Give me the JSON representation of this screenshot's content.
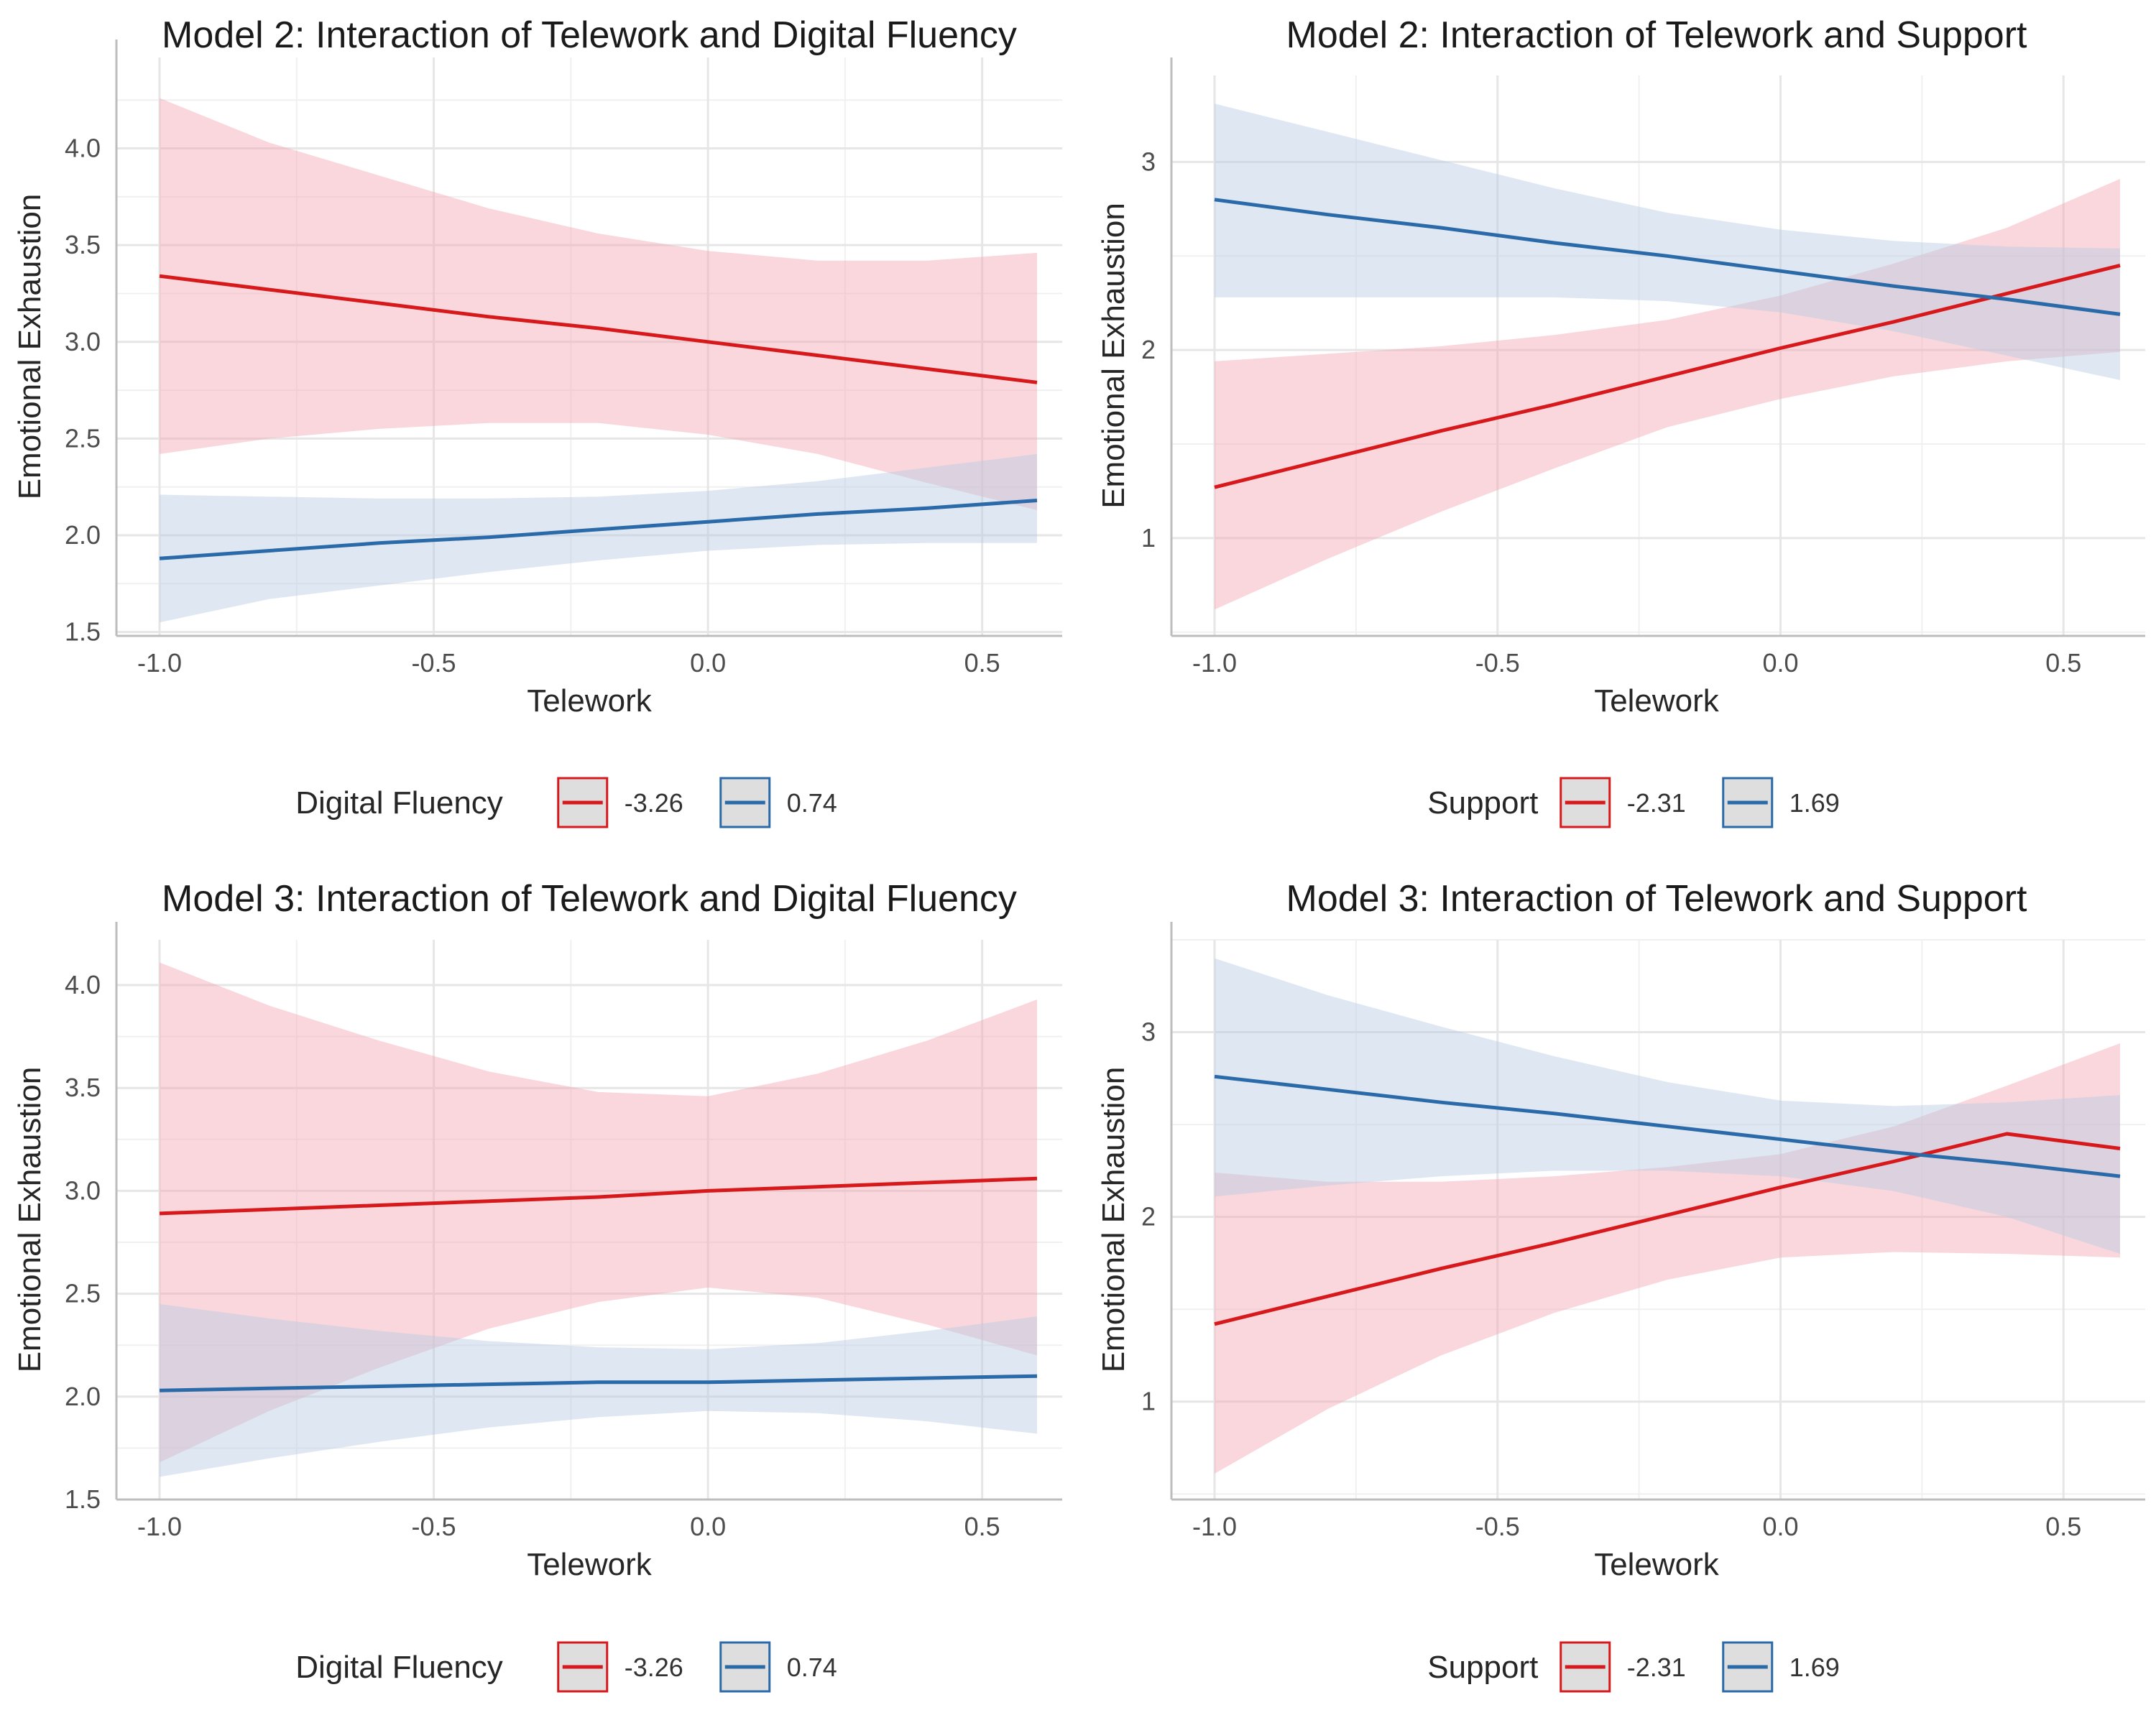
{
  "colors": {
    "low": "#d7191c",
    "high": "#2b6aa8",
    "low_band": "#f2a7b3",
    "high_band": "#b9cbe3",
    "grid_major": "#e6e6e6",
    "grid_minor": "#f0f0f0",
    "axis": "#bdbdbd",
    "tick_text": "#4d4d4d",
    "title_text": "#1a1a1a"
  },
  "chart_data": [
    {
      "type": "line",
      "title": "Model 2: Interaction of Telework and Digital Fluency",
      "xlabel": "Telework",
      "ylabel": "Emotional Exhaustion",
      "xlim": [
        -1.0,
        0.6
      ],
      "ylim": [
        1.48,
        4.47
      ],
      "xticks": [
        -1.0,
        -0.5,
        0.0,
        0.5
      ],
      "xtick_labels": [
        "-1.0",
        "-0.5",
        "0.0",
        "0.5"
      ],
      "yticks": [
        1.5,
        2.0,
        2.5,
        3.0,
        3.5,
        4.0
      ],
      "ytick_labels": [
        "1.5",
        "2.0",
        "2.5",
        "3.0",
        "3.5",
        "4.0"
      ],
      "grid": true,
      "legend": {
        "title": "Digital Fluency",
        "position": "bottom",
        "labels": [
          "-3.26",
          "0.74"
        ]
      },
      "series": [
        {
          "name": "-3.26",
          "color_key": "low",
          "x": [
            -1.0,
            -0.8,
            -0.6,
            -0.4,
            -0.2,
            0.0,
            0.2,
            0.4,
            0.6
          ],
          "y": [
            3.34,
            3.27,
            3.2,
            3.13,
            3.07,
            3.0,
            2.93,
            2.86,
            2.79
          ],
          "lower": [
            2.42,
            2.5,
            2.55,
            2.58,
            2.58,
            2.52,
            2.42,
            2.27,
            2.13
          ],
          "upper": [
            4.26,
            4.03,
            3.86,
            3.69,
            3.56,
            3.47,
            3.42,
            3.42,
            3.46
          ]
        },
        {
          "name": "0.74",
          "color_key": "high",
          "x": [
            -1.0,
            -0.8,
            -0.6,
            -0.4,
            -0.2,
            0.0,
            0.2,
            0.4,
            0.6
          ],
          "y": [
            1.88,
            1.92,
            1.96,
            1.99,
            2.03,
            2.07,
            2.11,
            2.14,
            2.18
          ],
          "lower": [
            1.55,
            1.67,
            1.74,
            1.81,
            1.87,
            1.92,
            1.95,
            1.96,
            1.96
          ],
          "upper": [
            2.21,
            2.2,
            2.19,
            2.19,
            2.2,
            2.23,
            2.28,
            2.35,
            2.42
          ]
        }
      ]
    },
    {
      "type": "line",
      "title": "Model 2: Interaction of Telework and Support",
      "xlabel": "Telework",
      "ylabel": "Emotional Exhaustion",
      "xlim": [
        -1.0,
        0.6
      ],
      "ylim": [
        0.48,
        3.46
      ],
      "xticks": [
        -1.0,
        -0.5,
        0.0,
        0.5
      ],
      "xtick_labels": [
        "-1.0",
        "-0.5",
        "0.0",
        "0.5"
      ],
      "yticks": [
        1,
        2,
        3
      ],
      "ytick_labels": [
        "1",
        "2",
        "3"
      ],
      "grid": true,
      "legend": {
        "title": "Support",
        "position": "bottom",
        "labels": [
          "-2.31",
          "1.69"
        ]
      },
      "series": [
        {
          "name": "-2.31",
          "color_key": "low",
          "x": [
            -1.0,
            -0.8,
            -0.6,
            -0.4,
            -0.2,
            0.0,
            0.2,
            0.4,
            0.6
          ],
          "y": [
            1.27,
            1.42,
            1.57,
            1.71,
            1.86,
            2.01,
            2.15,
            2.3,
            2.45
          ],
          "lower": [
            0.62,
            0.89,
            1.14,
            1.37,
            1.59,
            1.74,
            1.86,
            1.94,
            1.99
          ],
          "upper": [
            1.94,
            1.98,
            2.02,
            2.08,
            2.16,
            2.29,
            2.46,
            2.65,
            2.91
          ]
        },
        {
          "name": "1.69",
          "color_key": "high",
          "x": [
            -1.0,
            -0.8,
            -0.6,
            -0.4,
            -0.2,
            0.0,
            0.2,
            0.4,
            0.6
          ],
          "y": [
            2.8,
            2.72,
            2.65,
            2.57,
            2.5,
            2.42,
            2.34,
            2.27,
            2.19
          ],
          "lower": [
            2.28,
            2.28,
            2.28,
            2.28,
            2.26,
            2.2,
            2.1,
            1.97,
            1.84
          ],
          "upper": [
            3.31,
            3.16,
            3.01,
            2.86,
            2.73,
            2.64,
            2.58,
            2.55,
            2.54
          ]
        }
      ]
    },
    {
      "type": "line",
      "title": "Model 3: Interaction of Telework and Digital Fluency",
      "xlabel": "Telework",
      "ylabel": "Emotional Exhaustion",
      "xlim": [
        -1.0,
        0.6
      ],
      "ylim": [
        1.5,
        4.22
      ],
      "xticks": [
        -1.0,
        -0.5,
        0.0,
        0.5
      ],
      "xtick_labels": [
        "-1.0",
        "-0.5",
        "0.0",
        "0.5"
      ],
      "yticks": [
        1.5,
        2.0,
        2.5,
        3.0,
        3.5,
        4.0
      ],
      "ytick_labels": [
        "1.5",
        "2.0",
        "2.5",
        "3.0",
        "3.5",
        "4.0"
      ],
      "grid": true,
      "legend": {
        "title": "Digital Fluency",
        "position": "bottom",
        "labels": [
          "-3.26",
          "0.74"
        ]
      },
      "series": [
        {
          "name": "-3.26",
          "color_key": "low",
          "x": [
            -1.0,
            -0.8,
            -0.6,
            -0.4,
            -0.2,
            0.0,
            0.2,
            0.4,
            0.6
          ],
          "y": [
            2.89,
            2.91,
            2.93,
            2.95,
            2.97,
            3.0,
            3.02,
            3.04,
            3.06
          ],
          "lower": [
            1.68,
            1.93,
            2.14,
            2.33,
            2.46,
            2.53,
            2.48,
            2.35,
            2.2
          ],
          "upper": [
            4.11,
            3.9,
            3.73,
            3.58,
            3.48,
            3.46,
            3.57,
            3.73,
            3.93
          ]
        },
        {
          "name": "0.74",
          "color_key": "high",
          "x": [
            -1.0,
            -0.8,
            -0.6,
            -0.4,
            -0.2,
            0.0,
            0.2,
            0.4,
            0.6
          ],
          "y": [
            2.03,
            2.04,
            2.05,
            2.06,
            2.07,
            2.07,
            2.08,
            2.09,
            2.1
          ],
          "lower": [
            1.61,
            1.7,
            1.78,
            1.85,
            1.9,
            1.93,
            1.92,
            1.88,
            1.82
          ],
          "upper": [
            2.45,
            2.38,
            2.32,
            2.27,
            2.24,
            2.23,
            2.26,
            2.32,
            2.39
          ]
        }
      ]
    },
    {
      "type": "line",
      "title": "Model 3: Interaction of Telework and Support",
      "xlabel": "Telework",
      "ylabel": "Emotional Exhaustion",
      "xlim": [
        -1.0,
        0.6
      ],
      "ylim": [
        0.47,
        3.5
      ],
      "xticks": [
        -1.0,
        -0.5,
        0.0,
        0.5
      ],
      "xtick_labels": [
        "-1.0",
        "-0.5",
        "0.0",
        "0.5"
      ],
      "yticks": [
        1,
        2,
        3
      ],
      "ytick_labels": [
        "1",
        "2",
        "3"
      ],
      "grid": true,
      "legend": {
        "title": "Support",
        "position": "bottom",
        "labels": [
          "-2.31",
          "1.69"
        ]
      },
      "series": [
        {
          "name": "-2.31",
          "color_key": "low",
          "x": [
            -1.0,
            -0.8,
            -0.6,
            -0.4,
            -0.2,
            0.0,
            0.2,
            0.4,
            0.6
          ],
          "y": [
            1.42,
            1.57,
            1.72,
            1.86,
            2.01,
            2.16,
            2.3,
            2.45,
            2.37
          ],
          "lower": [
            0.61,
            0.96,
            1.25,
            1.48,
            1.66,
            1.78,
            1.81,
            1.8,
            1.78
          ],
          "upper": [
            2.24,
            2.19,
            2.19,
            2.22,
            2.27,
            2.34,
            2.49,
            2.71,
            2.94
          ]
        },
        {
          "name": "1.69",
          "color_key": "high",
          "x": [
            -1.0,
            -0.8,
            -0.6,
            -0.4,
            -0.2,
            0.0,
            0.2,
            0.4,
            0.6
          ],
          "y": [
            2.76,
            2.69,
            2.62,
            2.56,
            2.49,
            2.42,
            2.35,
            2.29,
            2.22
          ],
          "lower": [
            2.11,
            2.17,
            2.22,
            2.25,
            2.25,
            2.22,
            2.14,
            2.0,
            1.8
          ],
          "upper": [
            3.4,
            3.2,
            3.03,
            2.87,
            2.73,
            2.63,
            2.6,
            2.62,
            2.66
          ]
        }
      ]
    }
  ]
}
